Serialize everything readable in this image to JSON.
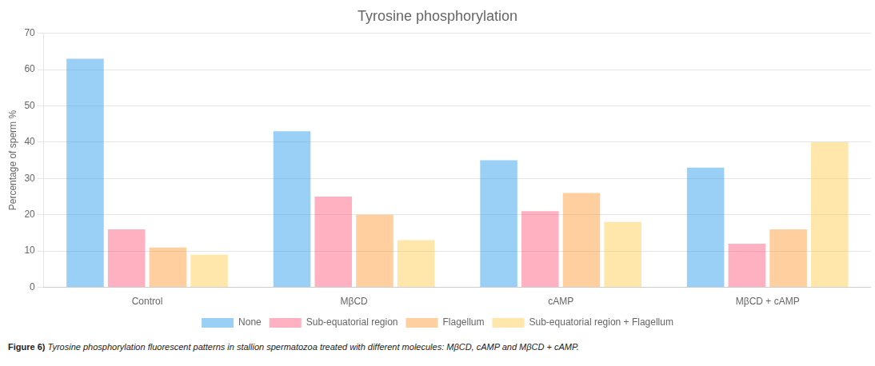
{
  "chart_data": {
    "type": "bar",
    "title": "Tyrosine phosphorylation",
    "ylabel": "Percentage of sperm %",
    "categories": [
      "Control",
      "MβCD",
      "cAMP",
      "MβCD + cAMP"
    ],
    "series": [
      {
        "name": "None",
        "values": [
          63,
          43,
          35,
          33
        ]
      },
      {
        "name": "Sub-equatorial region",
        "values": [
          16,
          25,
          21,
          12
        ]
      },
      {
        "name": "Flagellum",
        "values": [
          11,
          20,
          26,
          16
        ]
      },
      {
        "name": "Sub-equatorial region + Flagellum",
        "values": [
          9,
          13,
          18,
          40
        ]
      }
    ],
    "ylim": [
      0,
      70
    ],
    "yticks": [
      0,
      10,
      20,
      30,
      40,
      50,
      60,
      70
    ],
    "grid": true,
    "legend": "bottom",
    "annotations": [
      "Figure 6)",
      "Tyrosine phosphorylation fluorescent patterns in stallion spermatozoa treated with different molecules: MβCD, cAMP and MβCD + cAMP."
    ]
  }
}
